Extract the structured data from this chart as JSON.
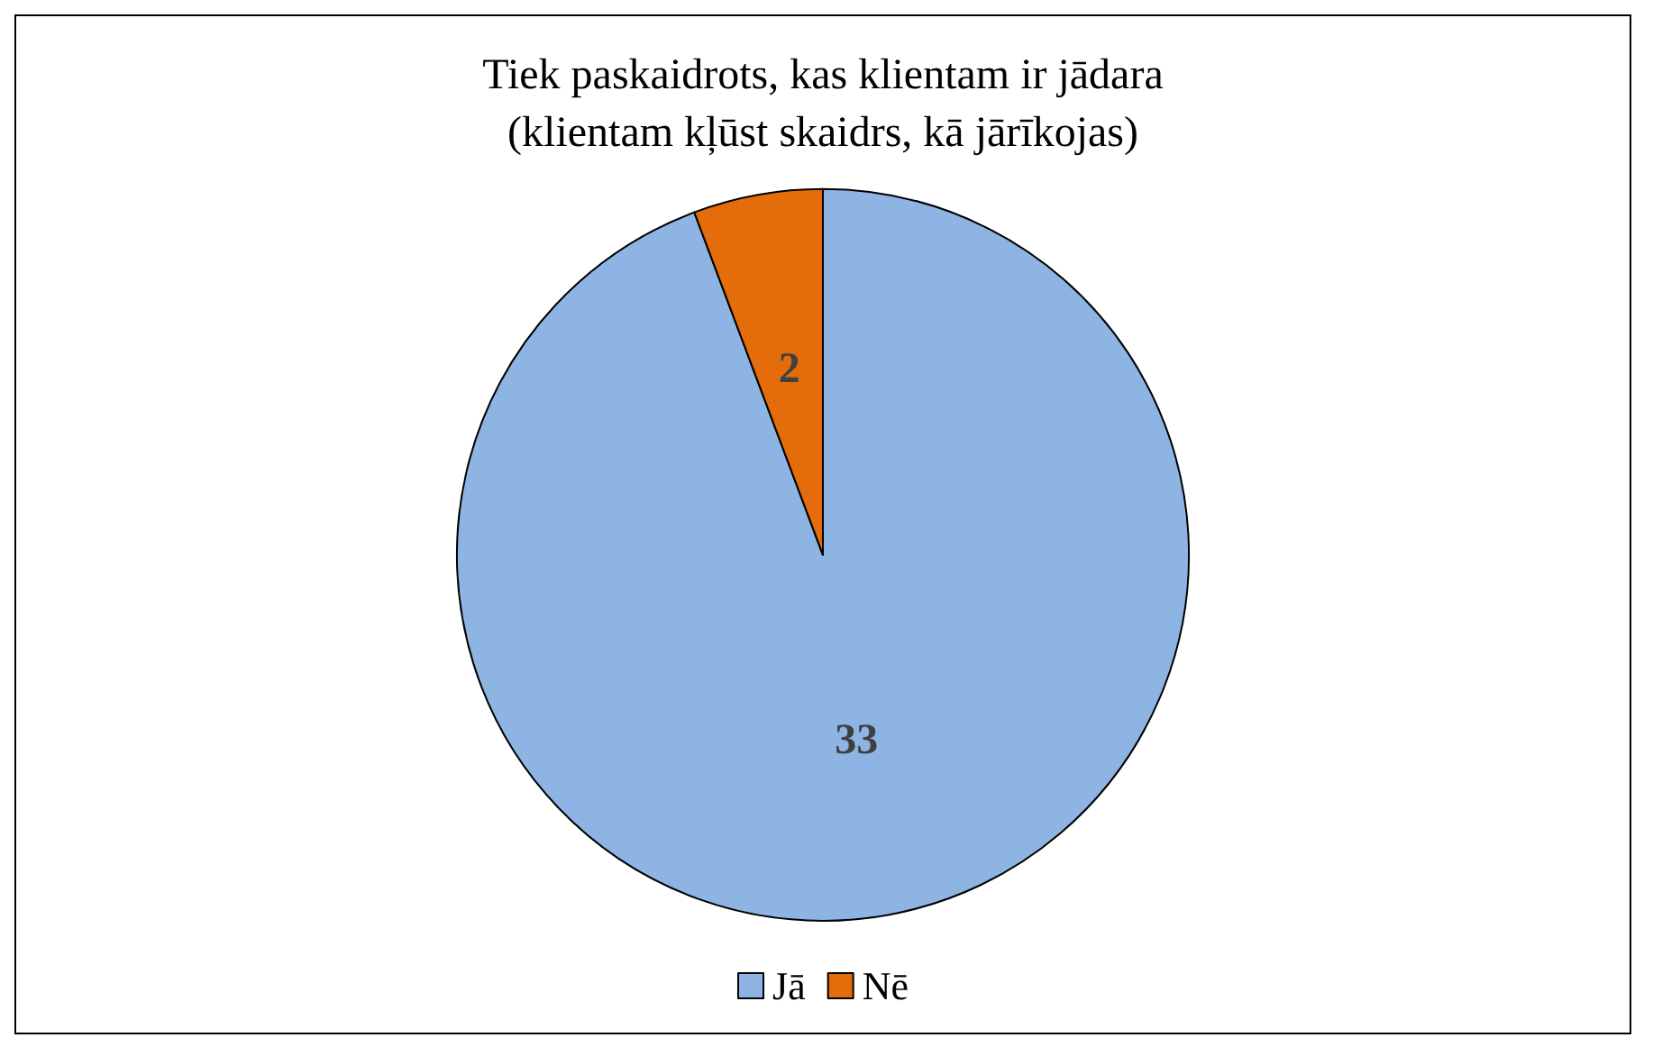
{
  "chart_data": {
    "type": "pie",
    "title": "Tiek paskaidrots, kas klientam ir jādara\n(klientam kļūst skaidrs, kā jārīkojas)",
    "categories": [
      "Jā",
      "Nē"
    ],
    "values": [
      33,
      2
    ],
    "colors": [
      "#8eb4e3",
      "#e46c0a"
    ],
    "data_labels": true,
    "legend": "bottom"
  }
}
